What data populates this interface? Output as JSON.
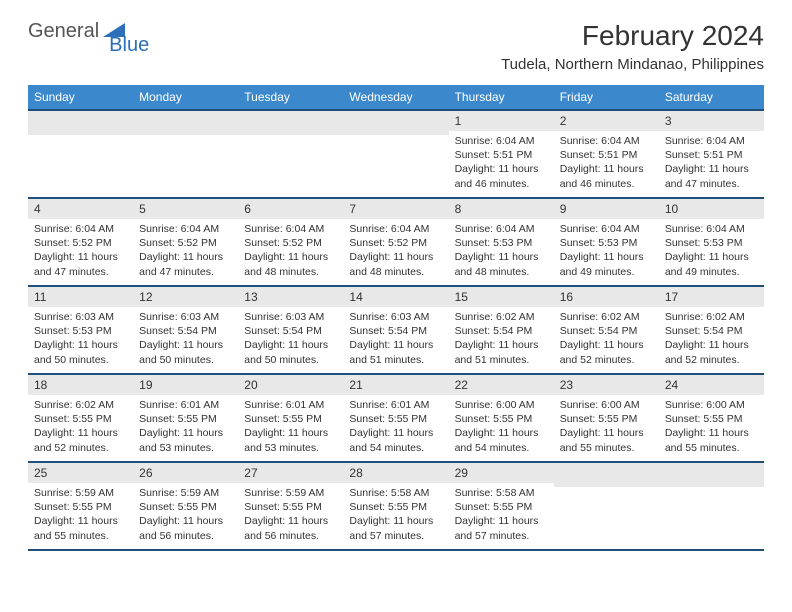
{
  "logo": {
    "part1": "General",
    "part2": "Blue"
  },
  "title": "February 2024",
  "location": "Tudela, Northern Mindanao, Philippines",
  "colors": {
    "header_bg": "#3b89cc",
    "header_border": "#1f4e79",
    "daynum_bg": "#e8e8e8",
    "text": "#333333",
    "logo_gray": "#555555",
    "logo_blue": "#2d6fb8"
  },
  "day_names": [
    "Sunday",
    "Monday",
    "Tuesday",
    "Wednesday",
    "Thursday",
    "Friday",
    "Saturday"
  ],
  "weeks": [
    [
      null,
      null,
      null,
      null,
      {
        "n": "1",
        "sr": "6:04 AM",
        "ss": "5:51 PM",
        "dl": "11 hours and 46 minutes."
      },
      {
        "n": "2",
        "sr": "6:04 AM",
        "ss": "5:51 PM",
        "dl": "11 hours and 46 minutes."
      },
      {
        "n": "3",
        "sr": "6:04 AM",
        "ss": "5:51 PM",
        "dl": "11 hours and 47 minutes."
      }
    ],
    [
      {
        "n": "4",
        "sr": "6:04 AM",
        "ss": "5:52 PM",
        "dl": "11 hours and 47 minutes."
      },
      {
        "n": "5",
        "sr": "6:04 AM",
        "ss": "5:52 PM",
        "dl": "11 hours and 47 minutes."
      },
      {
        "n": "6",
        "sr": "6:04 AM",
        "ss": "5:52 PM",
        "dl": "11 hours and 48 minutes."
      },
      {
        "n": "7",
        "sr": "6:04 AM",
        "ss": "5:52 PM",
        "dl": "11 hours and 48 minutes."
      },
      {
        "n": "8",
        "sr": "6:04 AM",
        "ss": "5:53 PM",
        "dl": "11 hours and 48 minutes."
      },
      {
        "n": "9",
        "sr": "6:04 AM",
        "ss": "5:53 PM",
        "dl": "11 hours and 49 minutes."
      },
      {
        "n": "10",
        "sr": "6:04 AM",
        "ss": "5:53 PM",
        "dl": "11 hours and 49 minutes."
      }
    ],
    [
      {
        "n": "11",
        "sr": "6:03 AM",
        "ss": "5:53 PM",
        "dl": "11 hours and 50 minutes."
      },
      {
        "n": "12",
        "sr": "6:03 AM",
        "ss": "5:54 PM",
        "dl": "11 hours and 50 minutes."
      },
      {
        "n": "13",
        "sr": "6:03 AM",
        "ss": "5:54 PM",
        "dl": "11 hours and 50 minutes."
      },
      {
        "n": "14",
        "sr": "6:03 AM",
        "ss": "5:54 PM",
        "dl": "11 hours and 51 minutes."
      },
      {
        "n": "15",
        "sr": "6:02 AM",
        "ss": "5:54 PM",
        "dl": "11 hours and 51 minutes."
      },
      {
        "n": "16",
        "sr": "6:02 AM",
        "ss": "5:54 PM",
        "dl": "11 hours and 52 minutes."
      },
      {
        "n": "17",
        "sr": "6:02 AM",
        "ss": "5:54 PM",
        "dl": "11 hours and 52 minutes."
      }
    ],
    [
      {
        "n": "18",
        "sr": "6:02 AM",
        "ss": "5:55 PM",
        "dl": "11 hours and 52 minutes."
      },
      {
        "n": "19",
        "sr": "6:01 AM",
        "ss": "5:55 PM",
        "dl": "11 hours and 53 minutes."
      },
      {
        "n": "20",
        "sr": "6:01 AM",
        "ss": "5:55 PM",
        "dl": "11 hours and 53 minutes."
      },
      {
        "n": "21",
        "sr": "6:01 AM",
        "ss": "5:55 PM",
        "dl": "11 hours and 54 minutes."
      },
      {
        "n": "22",
        "sr": "6:00 AM",
        "ss": "5:55 PM",
        "dl": "11 hours and 54 minutes."
      },
      {
        "n": "23",
        "sr": "6:00 AM",
        "ss": "5:55 PM",
        "dl": "11 hours and 55 minutes."
      },
      {
        "n": "24",
        "sr": "6:00 AM",
        "ss": "5:55 PM",
        "dl": "11 hours and 55 minutes."
      }
    ],
    [
      {
        "n": "25",
        "sr": "5:59 AM",
        "ss": "5:55 PM",
        "dl": "11 hours and 55 minutes."
      },
      {
        "n": "26",
        "sr": "5:59 AM",
        "ss": "5:55 PM",
        "dl": "11 hours and 56 minutes."
      },
      {
        "n": "27",
        "sr": "5:59 AM",
        "ss": "5:55 PM",
        "dl": "11 hours and 56 minutes."
      },
      {
        "n": "28",
        "sr": "5:58 AM",
        "ss": "5:55 PM",
        "dl": "11 hours and 57 minutes."
      },
      {
        "n": "29",
        "sr": "5:58 AM",
        "ss": "5:55 PM",
        "dl": "11 hours and 57 minutes."
      },
      null,
      null
    ]
  ],
  "labels": {
    "sunrise": "Sunrise:",
    "sunset": "Sunset:",
    "daylight": "Daylight:"
  }
}
